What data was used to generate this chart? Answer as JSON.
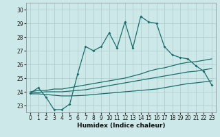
{
  "xlabel": "Humidex (Indice chaleur)",
  "background_color": "#cde8e8",
  "grid_color": "#aacccc",
  "line_color": "#1a6b6b",
  "xlim": [
    -0.5,
    23.5
  ],
  "ylim": [
    22.5,
    30.5
  ],
  "yticks": [
    23,
    24,
    25,
    26,
    27,
    28,
    29,
    30
  ],
  "xticks": [
    0,
    1,
    2,
    3,
    4,
    5,
    6,
    7,
    8,
    9,
    10,
    11,
    12,
    13,
    14,
    15,
    16,
    17,
    18,
    19,
    20,
    21,
    22,
    23
  ],
  "series1_x": [
    0,
    1,
    2,
    3,
    4,
    5,
    6,
    7,
    8,
    9,
    10,
    11,
    12,
    13,
    14,
    15,
    16,
    17,
    18,
    19,
    20,
    21,
    22,
    23
  ],
  "series1_y": [
    23.9,
    24.3,
    23.6,
    22.7,
    22.7,
    23.1,
    25.3,
    27.3,
    27.0,
    27.3,
    28.3,
    27.2,
    29.1,
    27.2,
    29.5,
    29.1,
    29.0,
    27.3,
    26.7,
    26.5,
    26.4,
    25.9,
    25.5,
    24.5
  ],
  "series2_x": [
    0,
    1,
    2,
    3,
    4,
    5,
    6,
    7,
    8,
    9,
    10,
    11,
    12,
    13,
    14,
    15,
    16,
    17,
    18,
    19,
    20,
    21,
    22,
    23
  ],
  "series2_y": [
    24.0,
    24.1,
    24.1,
    24.2,
    24.2,
    24.3,
    24.4,
    24.5,
    24.6,
    24.7,
    24.8,
    24.9,
    25.0,
    25.15,
    25.3,
    25.5,
    25.65,
    25.75,
    25.9,
    26.05,
    26.15,
    26.2,
    26.3,
    26.4
  ],
  "series3_x": [
    0,
    1,
    2,
    3,
    4,
    5,
    6,
    7,
    8,
    9,
    10,
    11,
    12,
    13,
    14,
    15,
    16,
    17,
    18,
    19,
    20,
    21,
    22,
    23
  ],
  "series3_y": [
    23.9,
    23.95,
    24.0,
    24.0,
    24.0,
    24.05,
    24.1,
    24.15,
    24.25,
    24.35,
    24.45,
    24.55,
    24.65,
    24.75,
    24.85,
    24.95,
    25.05,
    25.15,
    25.25,
    25.35,
    25.45,
    25.5,
    25.6,
    25.7
  ],
  "series4_x": [
    0,
    1,
    2,
    3,
    4,
    5,
    6,
    7,
    8,
    9,
    10,
    11,
    12,
    13,
    14,
    15,
    16,
    17,
    18,
    19,
    20,
    21,
    22,
    23
  ],
  "series4_y": [
    23.85,
    23.85,
    23.8,
    23.75,
    23.7,
    23.7,
    23.72,
    23.75,
    23.8,
    23.85,
    23.9,
    23.95,
    24.0,
    24.05,
    24.1,
    24.15,
    24.2,
    24.3,
    24.4,
    24.5,
    24.6,
    24.65,
    24.72,
    24.8
  ]
}
